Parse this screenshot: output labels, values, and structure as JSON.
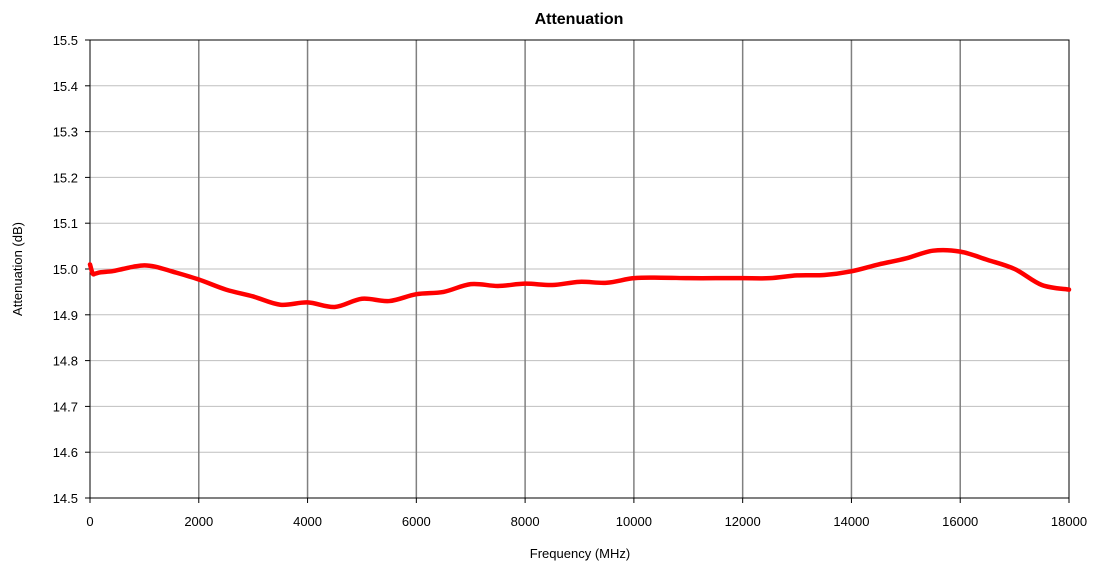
{
  "chart_data": {
    "type": "line",
    "title": "Attenuation",
    "xlabel": "Frequency (MHz)",
    "ylabel": "Attenuation (dB)",
    "xlim": [
      0,
      18000
    ],
    "ylim": [
      14.5,
      15.5
    ],
    "x_ticks": [
      "0",
      "2000",
      "4000",
      "6000",
      "8000",
      "10000",
      "12000",
      "14000",
      "16000",
      "18000"
    ],
    "y_ticks": [
      "14.5",
      "14.6",
      "14.7",
      "14.8",
      "14.9",
      "15.0",
      "15.1",
      "15.2",
      "15.3",
      "15.4",
      "15.5"
    ],
    "grid": {
      "x_major": true,
      "y_major": true
    },
    "series": [
      {
        "color": "#ff0000",
        "x": [
          0,
          50,
          100,
          200,
          400,
          600,
          800,
          1000,
          1200,
          1500,
          2000,
          2500,
          3000,
          3500,
          4000,
          4500,
          5000,
          5500,
          6000,
          6500,
          7000,
          7500,
          8000,
          8500,
          9000,
          9500,
          10000,
          10500,
          11000,
          11500,
          12000,
          12500,
          13000,
          13500,
          14000,
          14500,
          15000,
          15500,
          16000,
          16500,
          17000,
          17500,
          18000
        ],
        "y": [
          15.01,
          14.99,
          14.99,
          14.993,
          14.995,
          15.0,
          15.005,
          15.008,
          15.005,
          14.995,
          14.977,
          14.955,
          14.94,
          14.922,
          14.927,
          14.917,
          14.935,
          14.93,
          14.945,
          14.95,
          14.967,
          14.963,
          14.968,
          14.965,
          14.972,
          14.97,
          14.98,
          14.981,
          14.98,
          14.98,
          14.98,
          14.98,
          14.986,
          14.987,
          14.995,
          15.01,
          15.023,
          15.04,
          15.038,
          15.02,
          15.0,
          14.965,
          14.955
        ]
      }
    ]
  }
}
